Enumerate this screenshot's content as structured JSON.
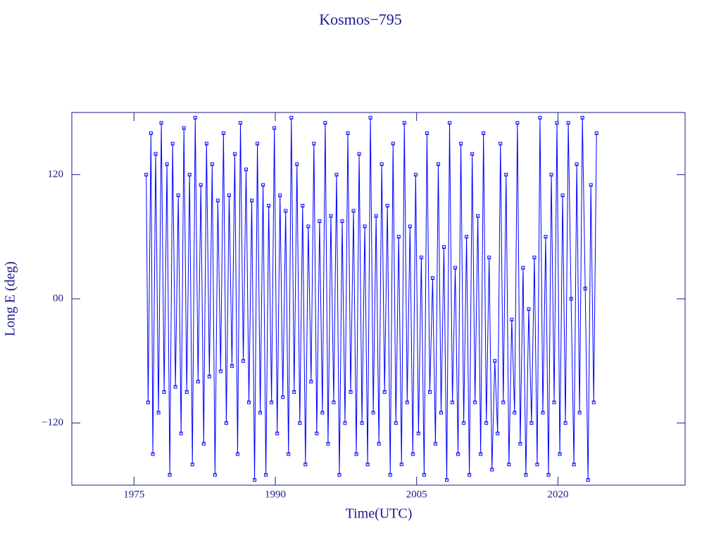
{
  "chart_data": {
    "type": "line",
    "title": "Kosmos−795",
    "x_label": "Time(UTC)",
    "y_label": "Long E (deg)",
    "color": "#0000ff",
    "xlim": [
      1968.4,
      2033.5
    ],
    "ylim": [
      -180,
      180
    ],
    "xticks": [
      1975,
      1990,
      2005,
      2020
    ],
    "yticks": [
      {
        "value": -120,
        "label": "−120"
      },
      {
        "value": 0,
        "label": "00"
      },
      120
    ],
    "x": [
      1976.3,
      1976.5,
      1976.8,
      1977.0,
      1977.3,
      1977.6,
      1977.9,
      1978.2,
      1978.5,
      1978.8,
      1979.1,
      1979.4,
      1979.7,
      1980.0,
      1980.3,
      1980.6,
      1980.9,
      1981.2,
      1981.5,
      1981.8,
      1982.1,
      1982.4,
      1982.7,
      1983.0,
      1983.3,
      1983.6,
      1983.9,
      1984.2,
      1984.5,
      1984.8,
      1985.1,
      1985.4,
      1985.7,
      1986.0,
      1986.3,
      1986.6,
      1986.9,
      1987.2,
      1987.5,
      1987.8,
      1988.1,
      1988.4,
      1988.7,
      1989.0,
      1989.3,
      1989.6,
      1989.9,
      1990.2,
      1990.5,
      1990.8,
      1991.1,
      1991.4,
      1991.7,
      1992.0,
      1992.3,
      1992.6,
      1992.9,
      1993.2,
      1993.5,
      1993.8,
      1994.1,
      1994.4,
      1994.7,
      1995.0,
      1995.3,
      1995.6,
      1995.9,
      1996.2,
      1996.5,
      1996.8,
      1997.1,
      1997.4,
      1997.7,
      1998.0,
      1998.3,
      1998.6,
      1998.9,
      1999.2,
      1999.5,
      1999.8,
      2000.1,
      2000.4,
      2000.7,
      2001.0,
      2001.3,
      2001.6,
      2001.9,
      2002.2,
      2002.5,
      2002.8,
      2003.1,
      2003.4,
      2003.7,
      2004.0,
      2004.3,
      2004.6,
      2004.9,
      2005.2,
      2005.5,
      2005.8,
      2006.1,
      2006.4,
      2006.7,
      2007.0,
      2007.3,
      2007.6,
      2007.9,
      2008.2,
      2008.5,
      2008.8,
      2009.1,
      2009.4,
      2009.7,
      2010.0,
      2010.3,
      2010.6,
      2010.9,
      2011.2,
      2011.5,
      2011.8,
      2012.1,
      2012.4,
      2012.7,
      2013.0,
      2013.3,
      2013.6,
      2013.9,
      2014.2,
      2014.5,
      2014.8,
      2015.1,
      2015.4,
      2015.7,
      2016.0,
      2016.3,
      2016.6,
      2016.9,
      2017.2,
      2017.5,
      2017.8,
      2018.1,
      2018.4,
      2018.7,
      2019.0,
      2019.3,
      2019.6,
      2019.9,
      2020.2,
      2020.5,
      2020.8,
      2021.1,
      2021.4,
      2021.7,
      2022.0,
      2022.3,
      2022.6,
      2022.9,
      2023.2,
      2023.5,
      2023.8,
      2024.1
    ],
    "values": [
      120,
      -100,
      160,
      -150,
      140,
      -110,
      170,
      -90,
      130,
      -170,
      150,
      -85,
      100,
      -130,
      165,
      -90,
      120,
      -160,
      175,
      -80,
      110,
      -140,
      150,
      -75,
      130,
      -170,
      95,
      -70,
      160,
      -120,
      100,
      -65,
      140,
      -150,
      170,
      -60,
      125,
      -100,
      95,
      -175,
      150,
      -110,
      110,
      -170,
      90,
      -100,
      165,
      -130,
      100,
      -95,
      85,
      -150,
      175,
      -90,
      130,
      -120,
      90,
      -160,
      70,
      -80,
      150,
      -130,
      75,
      -110,
      170,
      -140,
      80,
      -100,
      120,
      -170,
      75,
      -120,
      160,
      -90,
      85,
      -150,
      140,
      -120,
      70,
      -160,
      175,
      -110,
      80,
      -140,
      130,
      -90,
      90,
      -170,
      150,
      -120,
      60,
      -160,
      170,
      -100,
      70,
      -150,
      120,
      -130,
      40,
      -170,
      160,
      -90,
      20,
      -140,
      130,
      -110,
      50,
      -175,
      170,
      -100,
      30,
      -150,
      150,
      -120,
      60,
      -170,
      140,
      -100,
      80,
      -150,
      160,
      -120,
      40,
      -165,
      -60,
      -130,
      150,
      -100,
      120,
      -160,
      -20,
      -110,
      170,
      -140,
      30,
      -170,
      -10,
      -120,
      40,
      -160,
      175,
      -110,
      60,
      -170,
      120,
      -100,
      170,
      -150,
      100,
      -120,
      170,
      0,
      -160,
      130,
      -110,
      175,
      10,
      -175,
      110,
      -100,
      160
    ]
  }
}
